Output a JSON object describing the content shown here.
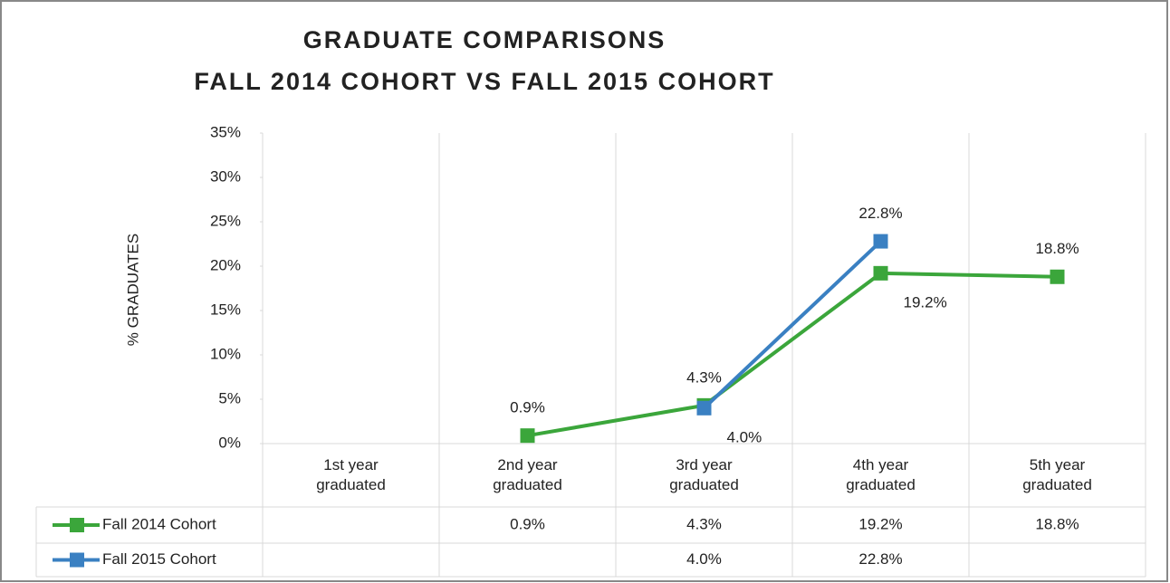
{
  "chart_data": {
    "type": "line",
    "title": "GRADUATE COMPARISONS",
    "subtitle": "FALL 2014 COHORT VS FALL 2015 COHORT",
    "y_label": "% GRADUATES",
    "categories": [
      "1st year graduated",
      "2nd year graduated",
      "3rd year graduated",
      "4th year graduated",
      "5th year graduated"
    ],
    "series": [
      {
        "name": "Fall 2014 Cohort",
        "color": "#3ba63b",
        "values": [
          null,
          0.9,
          4.3,
          19.2,
          18.8
        ],
        "value_labels": [
          null,
          "0.9%",
          "4.3%",
          "19.2%",
          "18.8%"
        ]
      },
      {
        "name": "Fall 2015 Cohort",
        "color": "#3a80c2",
        "values": [
          null,
          null,
          4.0,
          22.8,
          null
        ],
        "value_labels": [
          null,
          null,
          "4.0%",
          "22.8%",
          null
        ]
      }
    ],
    "ylim": [
      0,
      35
    ],
    "yticks": [
      {
        "value": 0,
        "label": "0%"
      },
      {
        "value": 5,
        "label": "5%"
      },
      {
        "value": 10,
        "label": "10%"
      },
      {
        "value": 15,
        "label": "15%"
      },
      {
        "value": 20,
        "label": "20%"
      },
      {
        "value": 25,
        "label": "25%"
      },
      {
        "value": 30,
        "label": "30%"
      },
      {
        "value": 35,
        "label": "35%"
      }
    ],
    "grid": "vertical",
    "legend": "table"
  }
}
